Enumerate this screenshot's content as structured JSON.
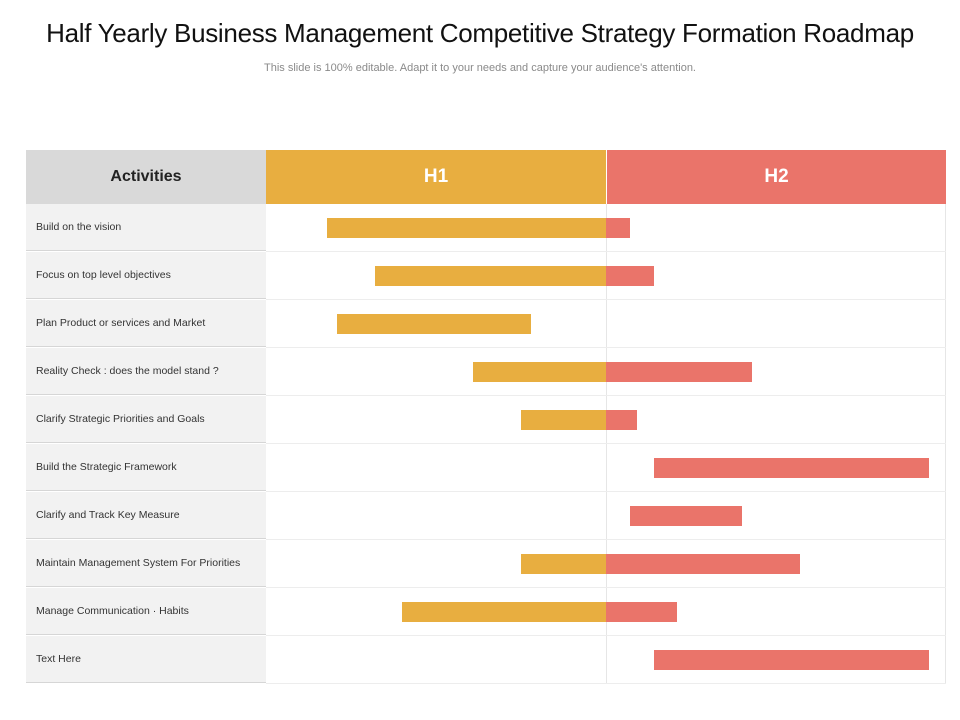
{
  "title": "Half Yearly Business Management Competitive Strategy Formation Roadmap",
  "subtitle": "This slide is 100% editable. Adapt it to your needs and capture your audience's attention.",
  "colors": {
    "h1": "#E8AE40",
    "h2": "#EA746A",
    "activities_header": "#D9D9D9",
    "label_bg": "#F2F2F2"
  },
  "chart_data": {
    "type": "table",
    "header": {
      "activities": "Activities",
      "periods": [
        "H1",
        "H2"
      ]
    },
    "timeline_range": [
      0,
      2
    ],
    "rows": [
      {
        "label": "Build on the vision",
        "start": 0.18,
        "end": 1.07
      },
      {
        "label": "Focus on top level objectives",
        "start": 0.32,
        "end": 1.14
      },
      {
        "label": "Plan Product or services  and Market",
        "start": 0.21,
        "end": 0.78
      },
      {
        "label": "Reality  Check : does the model stand ?",
        "start": 0.61,
        "end": 1.43
      },
      {
        "label": "Clarify Strategic  Priorities  and Goals",
        "start": 0.75,
        "end": 1.09
      },
      {
        "label": "Build the Strategic  Framework",
        "start": 1.14,
        "end": 1.95
      },
      {
        "label": "Clarify and Track Key Measure",
        "start": 1.07,
        "end": 1.4
      },
      {
        "label": "Maintain  Management System For Priorities",
        "start": 0.75,
        "end": 1.57
      },
      {
        "label": "Manage Communication · Habits",
        "start": 0.4,
        "end": 1.21
      },
      {
        "label": "Text Here",
        "start": 1.14,
        "end": 1.95
      }
    ]
  }
}
